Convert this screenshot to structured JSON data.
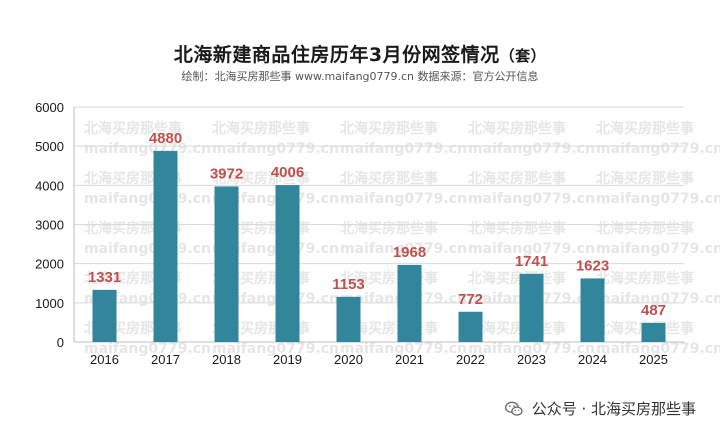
{
  "chart_data": {
    "type": "bar",
    "title": "北海新建商品住房历年3月份网签情况",
    "title_unit": "（套）",
    "subtitle": "绘制：北海买房那些事 www.maifang0779.cn   数据来源：官方公开信息",
    "categories": [
      "2016",
      "2017",
      "2018",
      "2019",
      "2020",
      "2021",
      "2022",
      "2023",
      "2024",
      "2025"
    ],
    "values": [
      1331,
      4880,
      3972,
      4006,
      1153,
      1968,
      772,
      1741,
      1623,
      487
    ],
    "ylim": [
      0,
      6000
    ],
    "yticks": [
      0,
      1000,
      2000,
      3000,
      4000,
      5000,
      6000
    ],
    "xlabel": "",
    "ylabel": "",
    "grid": true,
    "bar_color": "#31869b",
    "label_color": "#c0504d",
    "watermark_cn": "北海买房那些事",
    "watermark_en": "maifang0779.cn"
  },
  "footer": {
    "text": "公众号 · 北海买房那些事"
  }
}
